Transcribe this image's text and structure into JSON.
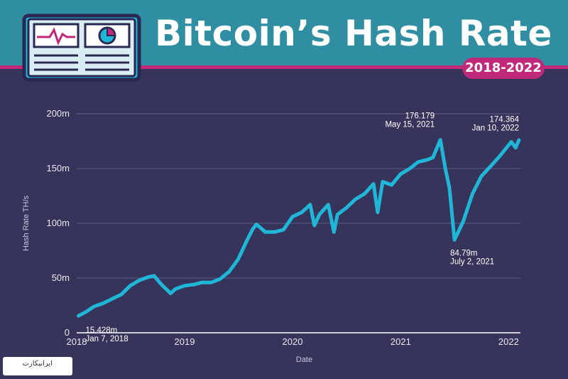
{
  "header": {
    "title": "Bitcoin’s Hash Rate",
    "badge": "2018-2022",
    "icon_name": "dashboard-monitor-icon",
    "colors": {
      "teal": "#2f8ea2",
      "magenta": "#c0297a",
      "background": "#36345a",
      "line": "#1fb6d8"
    }
  },
  "watermark": {
    "text": "ایرانیکارت"
  },
  "chart_data": {
    "type": "line",
    "title": "",
    "xlabel": "Date",
    "ylabel": "Hash Rate TH/s",
    "ylim": [
      0,
      200
    ],
    "y_ticks": [
      {
        "value": 0,
        "label": "0"
      },
      {
        "value": 50,
        "label": "50m"
      },
      {
        "value": 100,
        "label": "100m"
      },
      {
        "value": 150,
        "label": "150m"
      },
      {
        "value": 200,
        "label": "200m"
      }
    ],
    "x_ticks": [
      {
        "value": "2018-01-01",
        "label": "2018"
      },
      {
        "value": "2019-01-01",
        "label": "2019"
      },
      {
        "value": "2020-01-01",
        "label": "2020"
      },
      {
        "value": "2021-01-01",
        "label": "2021"
      },
      {
        "value": "2022-01-01",
        "label": "2022"
      }
    ],
    "xlim": [
      "2018-01-01",
      "2022-02-10"
    ],
    "grid": true,
    "series": [
      {
        "color": "#1fb6d8",
        "x": [
          "2018-01-07",
          "2018-02-01",
          "2018-03-01",
          "2018-04-01",
          "2018-05-01",
          "2018-06-01",
          "2018-07-01",
          "2018-08-01",
          "2018-09-01",
          "2018-09-20",
          "2018-10-15",
          "2018-11-15",
          "2018-12-01",
          "2019-01-01",
          "2019-02-01",
          "2019-03-01",
          "2019-04-01",
          "2019-05-01",
          "2019-06-01",
          "2019-07-01",
          "2019-08-01",
          "2019-08-20",
          "2019-09-01",
          "2019-10-01",
          "2019-11-01",
          "2019-12-01",
          "2020-01-01",
          "2020-02-01",
          "2020-03-01",
          "2020-03-15",
          "2020-04-01",
          "2020-05-01",
          "2020-05-20",
          "2020-06-01",
          "2020-07-01",
          "2020-08-01",
          "2020-09-01",
          "2020-10-01",
          "2020-10-15",
          "2020-11-01",
          "2020-12-01",
          "2021-01-01",
          "2021-02-01",
          "2021-03-01",
          "2021-04-01",
          "2021-04-20",
          "2021-05-15",
          "2021-06-01",
          "2021-06-15",
          "2021-07-02",
          "2021-08-01",
          "2021-09-01",
          "2021-10-01",
          "2021-11-01",
          "2021-12-01",
          "2022-01-10",
          "2022-01-25",
          "2022-02-05"
        ],
        "y": [
          15.428,
          19,
          24,
          27,
          31,
          35,
          43,
          48,
          51,
          52,
          44,
          36,
          40,
          43,
          44,
          46,
          46,
          49,
          56,
          67,
          85,
          95,
          99,
          92,
          92,
          94,
          106,
          110,
          117,
          98,
          108,
          117,
          92,
          108,
          114,
          122,
          127,
          136,
          110,
          138,
          135,
          145,
          150,
          156,
          158,
          160,
          176.179,
          150,
          132,
          84.79,
          102,
          127,
          143,
          152,
          161,
          174.364,
          169,
          176
        ]
      }
    ],
    "annotations": [
      {
        "x": "2018-01-07",
        "y": 15.428,
        "value": "15.428m",
        "date": "Jan 7, 2018"
      },
      {
        "x": "2021-05-15",
        "y": 176.179,
        "value": "176.179",
        "date": "May 15, 2021"
      },
      {
        "x": "2021-07-02",
        "y": 84.79,
        "value": "84.79m",
        "date": "July 2, 2021"
      },
      {
        "x": "2022-01-10",
        "y": 174.364,
        "value": "174.364",
        "date": "Jan 10, 2022"
      }
    ]
  }
}
